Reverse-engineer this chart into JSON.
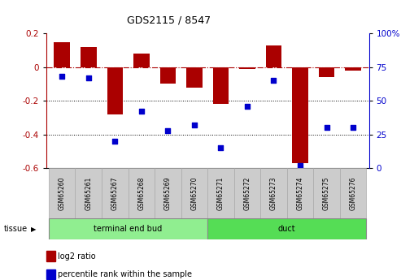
{
  "title": "GDS2115 / 8547",
  "samples": [
    "GSM65260",
    "GSM65261",
    "GSM65267",
    "GSM65268",
    "GSM65269",
    "GSM65270",
    "GSM65271",
    "GSM65272",
    "GSM65273",
    "GSM65274",
    "GSM65275",
    "GSM65276"
  ],
  "log2_ratio": [
    0.15,
    0.12,
    -0.28,
    0.08,
    -0.1,
    -0.12,
    -0.22,
    -0.01,
    0.13,
    -0.57,
    -0.06,
    -0.02
  ],
  "percentile_rank": [
    68,
    67,
    20,
    42,
    28,
    32,
    15,
    46,
    65,
    2,
    30,
    30
  ],
  "bar_color": "#aa0000",
  "dot_color": "#0000cc",
  "groups": [
    {
      "label": "terminal end bud",
      "start": 0,
      "end": 6,
      "color": "#90ee90"
    },
    {
      "label": "duct",
      "start": 6,
      "end": 12,
      "color": "#55dd55"
    }
  ],
  "ylim_left": [
    -0.6,
    0.2
  ],
  "ylim_right": [
    0,
    100
  ],
  "yticks_left": [
    -0.6,
    -0.4,
    -0.2,
    0.0,
    0.2
  ],
  "yticks_right": [
    0,
    25,
    50,
    75,
    100
  ],
  "dotted_lines": [
    -0.2,
    -0.4
  ],
  "legend_items": [
    {
      "color": "#aa0000",
      "label": "log2 ratio"
    },
    {
      "color": "#0000cc",
      "label": "percentile rank within the sample"
    }
  ],
  "tissue_label": "tissue",
  "bar_width": 0.6
}
